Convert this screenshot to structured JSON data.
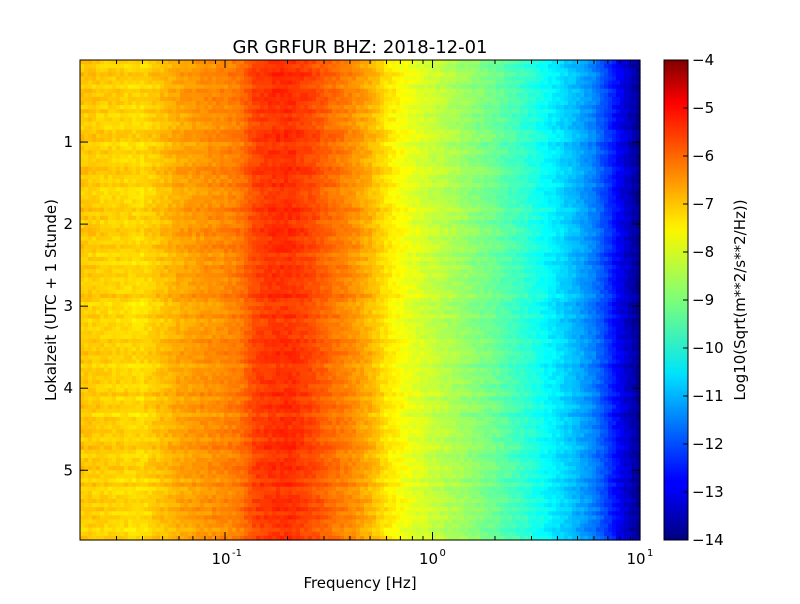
{
  "chart_data": {
    "type": "heatmap",
    "title": "GR GRFUR BHZ: 2018-12-01",
    "xlabel": "Frequency [Hz]",
    "ylabel": "Lokalzeit (UTC + 1 Stunde)",
    "x_scale": "log",
    "xlim": [
      0.02,
      10
    ],
    "x_ticks": [
      {
        "value": 0.1,
        "base": "10",
        "exp": "-1"
      },
      {
        "value": 1,
        "base": "10",
        "exp": "0"
      },
      {
        "value": 10,
        "base": "10",
        "exp": "1"
      }
    ],
    "ylim": [
      0,
      5.85
    ],
    "y_inverted": true,
    "y_ticks": [
      {
        "value": 1,
        "label": "1"
      },
      {
        "value": 2,
        "label": "2"
      },
      {
        "value": 3,
        "label": "3"
      },
      {
        "value": 4,
        "label": "4"
      },
      {
        "value": 5,
        "label": "5"
      }
    ],
    "colorbar": {
      "label": "Log10(Sqrt(m**2/s**2/Hz))",
      "colormap": "jet",
      "vmin": -14,
      "vmax": -4,
      "ticks": [
        {
          "value": -4,
          "label": "−4"
        },
        {
          "value": -5,
          "label": "−5"
        },
        {
          "value": -6,
          "label": "−6"
        },
        {
          "value": -7,
          "label": "−7"
        },
        {
          "value": -8,
          "label": "−8"
        },
        {
          "value": -9,
          "label": "−9"
        },
        {
          "value": -10,
          "label": "−10"
        },
        {
          "value": -11,
          "label": "−11"
        },
        {
          "value": -12,
          "label": "−12"
        },
        {
          "value": -13,
          "label": "−13"
        },
        {
          "value": -14,
          "label": "−14"
        }
      ]
    },
    "spectrum_profile": {
      "frequency_hz": [
        0.02,
        0.04,
        0.06,
        0.08,
        0.1,
        0.12,
        0.14,
        0.17,
        0.2,
        0.25,
        0.3,
        0.4,
        0.5,
        0.6,
        0.8,
        1.0,
        1.2,
        1.5,
        2.0,
        3.0,
        4.0,
        5.0,
        6.0,
        7.0,
        8.0,
        9.0,
        10.0
      ],
      "log10_amplitude": [
        -7.2,
        -7.4,
        -6.9,
        -6.7,
        -6.6,
        -6.4,
        -5.9,
        -5.75,
        -5.7,
        -5.9,
        -6.2,
        -6.6,
        -7.0,
        -7.5,
        -8.0,
        -8.3,
        -8.5,
        -8.8,
        -9.2,
        -9.9,
        -10.5,
        -11.0,
        -11.5,
        -12.2,
        -12.9,
        -13.4,
        -13.9
      ]
    },
    "time_hours": {
      "start": 0,
      "end": 5.85,
      "rows": 117
    }
  }
}
